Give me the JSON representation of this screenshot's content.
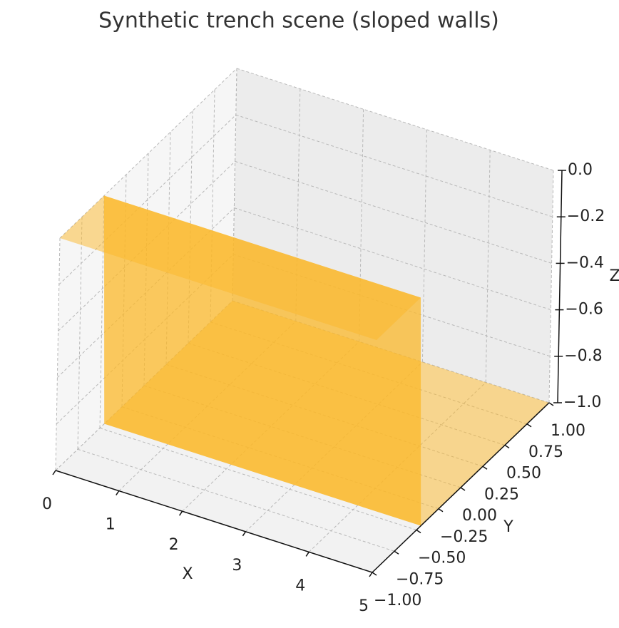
{
  "chart_data": {
    "type": "surface",
    "title": "Synthetic trench scene (sloped walls)",
    "x_label": "X",
    "y_label": "Y",
    "z_label": "Z",
    "xlim": [
      0,
      5
    ],
    "ylim": [
      -1,
      1
    ],
    "zlim": [
      -1,
      0
    ],
    "xticks": [
      0,
      1,
      2,
      3,
      4,
      5
    ],
    "yticks": [
      {
        "value": -1,
        "label": "−1.00"
      },
      {
        "value": -0.75,
        "label": "−0.75"
      },
      {
        "value": -0.5,
        "label": "−0.50"
      },
      {
        "value": -0.25,
        "label": "−0.25"
      },
      {
        "value": 0,
        "label": "0.00"
      },
      {
        "value": 0.25,
        "label": "0.25"
      },
      {
        "value": 0.5,
        "label": "0.50"
      },
      {
        "value": 0.75,
        "label": "0.75"
      },
      {
        "value": 1,
        "label": "1.00"
      }
    ],
    "zticks": [
      {
        "value": -1,
        "label": "−1.0"
      },
      {
        "value": -0.8,
        "label": "−0.8"
      },
      {
        "value": -0.6,
        "label": "−0.6"
      },
      {
        "value": -0.4,
        "label": "−0.4"
      },
      {
        "value": -0.2,
        "label": "−0.2"
      },
      {
        "value": 0,
        "label": "0.0"
      }
    ],
    "grid": true,
    "color": "#fbb829",
    "surface": {
      "y": [
        -1,
        -0.5,
        -0.45,
        1
      ],
      "z": [
        0,
        0,
        -1,
        -1
      ]
    }
  }
}
